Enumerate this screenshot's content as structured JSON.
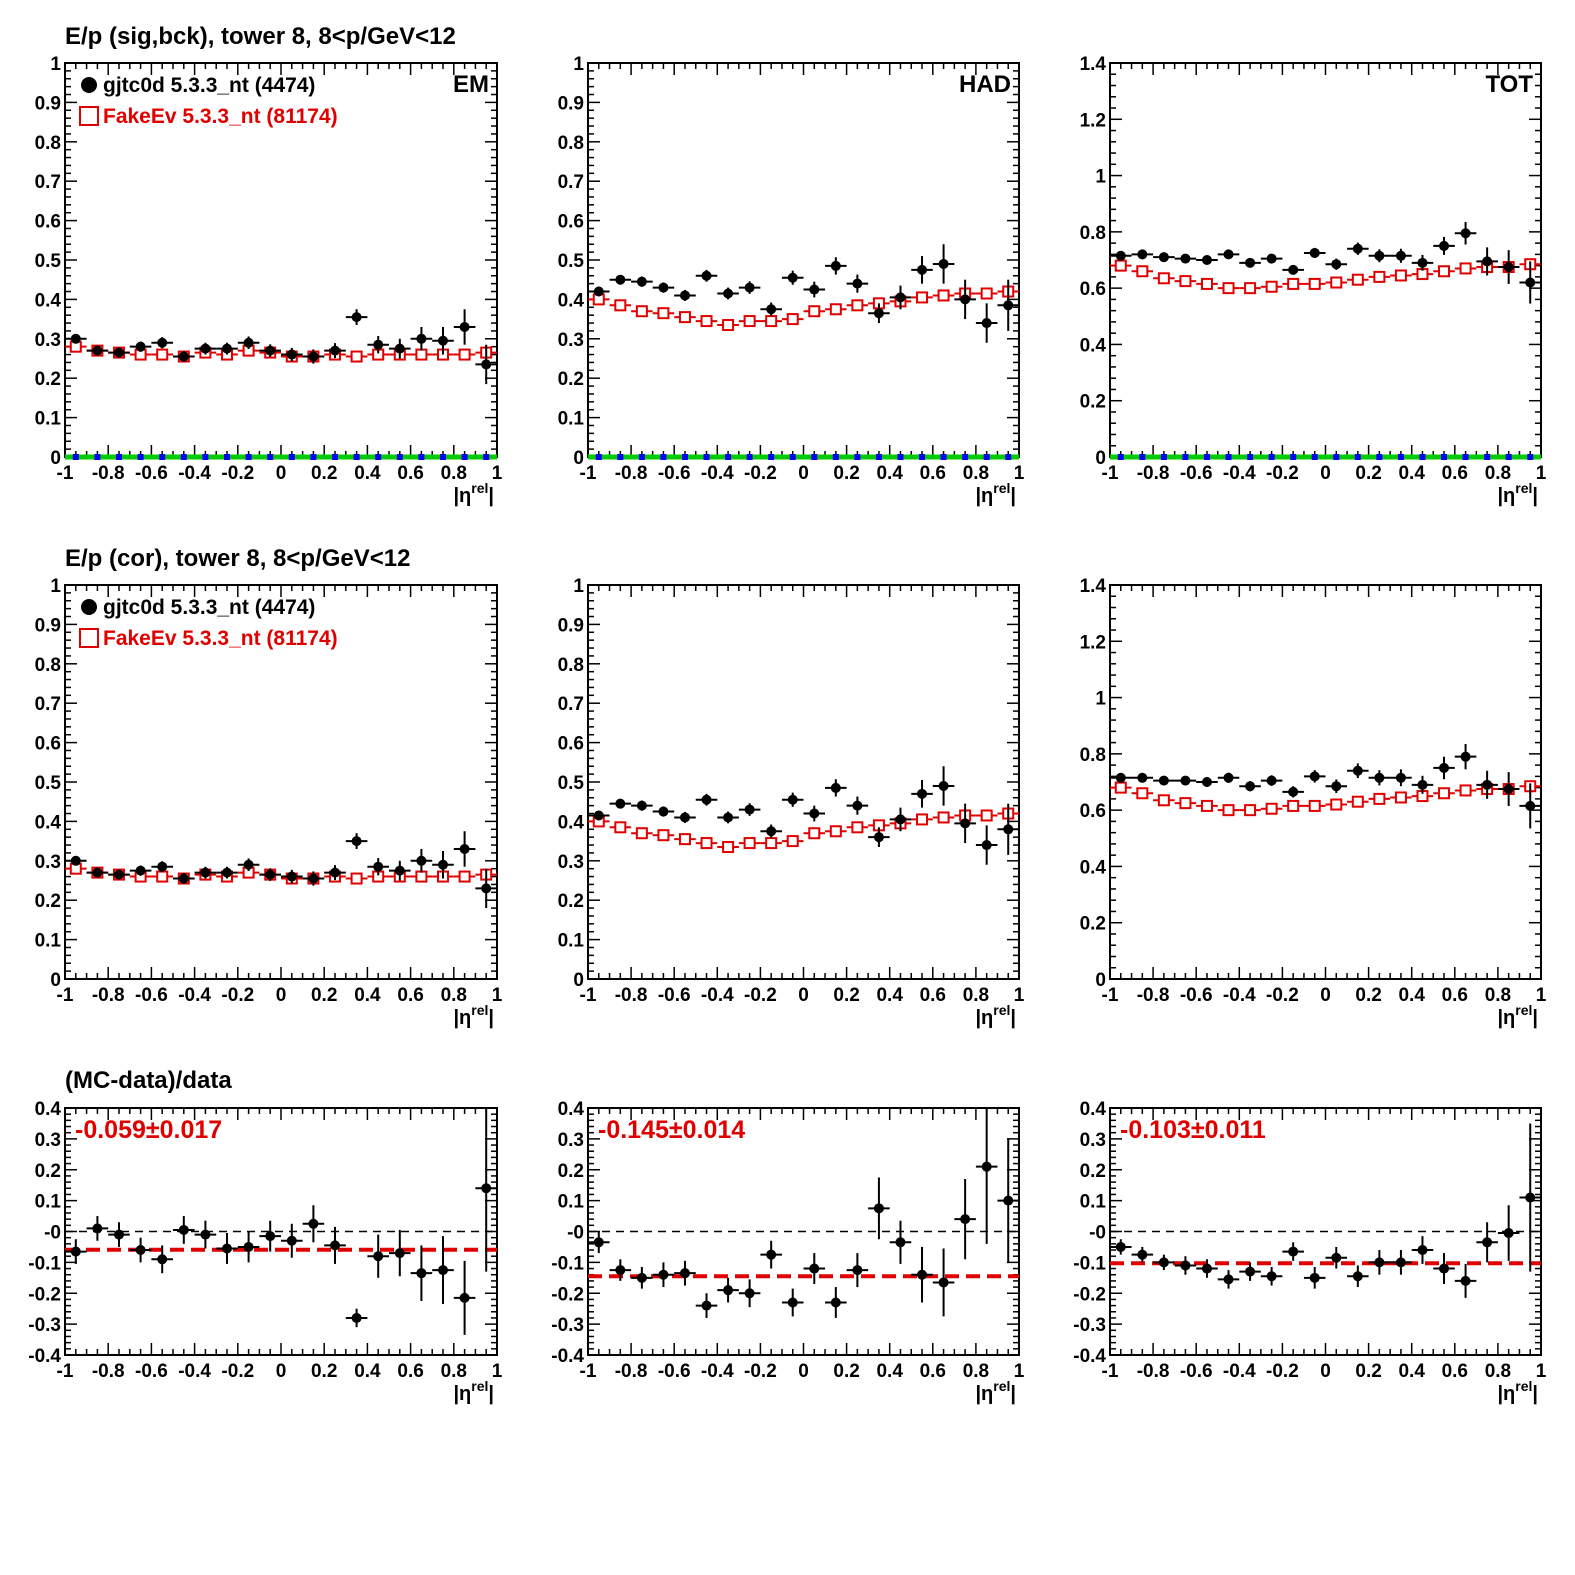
{
  "colors": {
    "data": "#000000",
    "mc": "#e00000",
    "fit": "#e00000",
    "zero_green": "#00cc00",
    "zero_blue": "#0000ff"
  },
  "x_axis": {
    "range": [
      -1,
      1
    ],
    "tick_labels": [
      "-1",
      "-0.8",
      "-0.6",
      "-0.4",
      "-0.2",
      "0",
      "0.2",
      "0.4",
      "0.6",
      "0.8",
      "1"
    ],
    "label": "|η^rel|"
  },
  "rows": {
    "row1": {
      "title": "E/p (sig,bck), tower 8,  8<p/GeV<12"
    },
    "row2": {
      "title": "E/p (cor), tower 8,  8<p/GeV<12"
    },
    "row3": {
      "title": "(MC-data)/data"
    }
  },
  "legend": {
    "data_label": "gjtc0d 5.3.3_nt (4474)",
    "mc_label": "FakeEv 5.3.3_nt (81174)"
  },
  "panel_labels": {
    "em": "EM",
    "had": "HAD",
    "tot": "TOT"
  },
  "fit_labels": {
    "em": "-0.059±0.017",
    "had": "-0.145±0.014",
    "tot": "-0.103±0.011"
  },
  "y_ticks": {
    "ep": [
      "0",
      "0.1",
      "0.2",
      "0.3",
      "0.4",
      "0.5",
      "0.6",
      "0.7",
      "0.8",
      "0.9",
      "1"
    ],
    "tot": [
      "0",
      "0.2",
      "0.4",
      "0.6",
      "0.8",
      "1",
      "1.2",
      "1.4"
    ],
    "ratio": [
      "-0.4",
      "-0.3",
      "-0.2",
      "-0.1",
      "-0",
      "0.1",
      "0.2",
      "0.3",
      "0.4"
    ]
  },
  "chart_data": [
    {
      "id": "em_sigbck",
      "type": "scatter",
      "panel": "EM",
      "x": [
        -0.95,
        -0.85,
        -0.75,
        -0.65,
        -0.55,
        -0.45,
        -0.35,
        -0.25,
        -0.15,
        -0.05,
        0.05,
        0.15,
        0.25,
        0.35,
        0.45,
        0.55,
        0.65,
        0.75,
        0.85,
        0.95
      ],
      "xlim": [
        -1,
        1
      ],
      "ylim": [
        0,
        1
      ],
      "series": [
        {
          "name": "gjtc0d 5.3.3_nt (4474)",
          "values": [
            0.3,
            0.27,
            0.265,
            0.28,
            0.29,
            0.255,
            0.275,
            0.275,
            0.29,
            0.27,
            0.26,
            0.255,
            0.27,
            0.355,
            0.285,
            0.275,
            0.3,
            0.295,
            0.33,
            0.235
          ],
          "errors": [
            0.012,
            0.012,
            0.012,
            0.013,
            0.014,
            0.014,
            0.015,
            0.015,
            0.016,
            0.016,
            0.017,
            0.018,
            0.019,
            0.02,
            0.022,
            0.025,
            0.03,
            0.035,
            0.045,
            0.05
          ]
        },
        {
          "name": "FakeEv 5.3.3_nt (81174)",
          "values": [
            0.28,
            0.27,
            0.265,
            0.26,
            0.26,
            0.255,
            0.265,
            0.26,
            0.27,
            0.265,
            0.255,
            0.255,
            0.26,
            0.255,
            0.26,
            0.26,
            0.26,
            0.26,
            0.26,
            0.265
          ]
        }
      ],
      "zero_markers": true
    },
    {
      "id": "had_sigbck",
      "type": "scatter",
      "panel": "HAD",
      "x": [
        -0.95,
        -0.85,
        -0.75,
        -0.65,
        -0.55,
        -0.45,
        -0.35,
        -0.25,
        -0.15,
        -0.05,
        0.05,
        0.15,
        0.25,
        0.35,
        0.45,
        0.55,
        0.65,
        0.75,
        0.85,
        0.95
      ],
      "xlim": [
        -1,
        1
      ],
      "ylim": [
        0,
        1
      ],
      "series": [
        {
          "name": "gjtc0d 5.3.3_nt (4474)",
          "values": [
            0.42,
            0.45,
            0.445,
            0.43,
            0.41,
            0.46,
            0.415,
            0.43,
            0.375,
            0.455,
            0.425,
            0.485,
            0.44,
            0.365,
            0.405,
            0.475,
            0.49,
            0.4,
            0.34,
            0.385
          ],
          "errors": [
            0.012,
            0.012,
            0.013,
            0.013,
            0.014,
            0.015,
            0.015,
            0.016,
            0.017,
            0.018,
            0.02,
            0.022,
            0.023,
            0.025,
            0.03,
            0.035,
            0.05,
            0.05,
            0.05,
            0.065
          ]
        },
        {
          "name": "FakeEv 5.3.3_nt (81174)",
          "values": [
            0.4,
            0.385,
            0.37,
            0.365,
            0.355,
            0.345,
            0.335,
            0.345,
            0.345,
            0.35,
            0.37,
            0.375,
            0.385,
            0.39,
            0.395,
            0.405,
            0.41,
            0.415,
            0.415,
            0.42
          ]
        }
      ],
      "zero_markers": true
    },
    {
      "id": "tot_sigbck",
      "type": "scatter",
      "panel": "TOT",
      "x": [
        -0.95,
        -0.85,
        -0.75,
        -0.65,
        -0.55,
        -0.45,
        -0.35,
        -0.25,
        -0.15,
        -0.05,
        0.05,
        0.15,
        0.25,
        0.35,
        0.45,
        0.55,
        0.65,
        0.75,
        0.85,
        0.95
      ],
      "xlim": [
        -1,
        1
      ],
      "ylim": [
        0,
        1.4
      ],
      "series": [
        {
          "name": "gjtc0d 5.3.3_nt (4474)",
          "values": [
            0.715,
            0.72,
            0.71,
            0.705,
            0.7,
            0.72,
            0.69,
            0.705,
            0.665,
            0.725,
            0.685,
            0.74,
            0.715,
            0.715,
            0.69,
            0.75,
            0.795,
            0.695,
            0.675,
            0.62
          ],
          "errors": [
            0.012,
            0.012,
            0.013,
            0.013,
            0.014,
            0.015,
            0.015,
            0.016,
            0.017,
            0.018,
            0.02,
            0.022,
            0.023,
            0.025,
            0.028,
            0.032,
            0.04,
            0.05,
            0.06,
            0.075
          ]
        },
        {
          "name": "FakeEv 5.3.3_nt (81174)",
          "values": [
            0.68,
            0.66,
            0.635,
            0.625,
            0.615,
            0.6,
            0.6,
            0.605,
            0.615,
            0.615,
            0.62,
            0.63,
            0.64,
            0.645,
            0.65,
            0.66,
            0.67,
            0.675,
            0.675,
            0.685
          ]
        }
      ],
      "zero_markers": true
    },
    {
      "id": "em_cor",
      "type": "scatter",
      "panel": "EM",
      "x": [
        -0.95,
        -0.85,
        -0.75,
        -0.65,
        -0.55,
        -0.45,
        -0.35,
        -0.25,
        -0.15,
        -0.05,
        0.05,
        0.15,
        0.25,
        0.35,
        0.45,
        0.55,
        0.65,
        0.75,
        0.85,
        0.95
      ],
      "xlim": [
        -1,
        1
      ],
      "ylim": [
        0,
        1
      ],
      "series": [
        {
          "name": "gjtc0d 5.3.3_nt (4474)",
          "values": [
            0.3,
            0.27,
            0.265,
            0.275,
            0.285,
            0.255,
            0.27,
            0.27,
            0.29,
            0.265,
            0.26,
            0.255,
            0.27,
            0.35,
            0.285,
            0.275,
            0.3,
            0.29,
            0.33,
            0.23
          ],
          "errors": [
            0.012,
            0.012,
            0.012,
            0.013,
            0.014,
            0.014,
            0.015,
            0.015,
            0.016,
            0.016,
            0.017,
            0.018,
            0.019,
            0.02,
            0.022,
            0.025,
            0.03,
            0.035,
            0.045,
            0.05
          ]
        },
        {
          "name": "FakeEv 5.3.3_nt (81174)",
          "values": [
            0.28,
            0.27,
            0.265,
            0.26,
            0.26,
            0.255,
            0.265,
            0.26,
            0.27,
            0.265,
            0.255,
            0.255,
            0.26,
            0.255,
            0.26,
            0.26,
            0.26,
            0.26,
            0.26,
            0.265
          ]
        }
      ],
      "zero_markers": false
    },
    {
      "id": "had_cor",
      "type": "scatter",
      "panel": "HAD",
      "x": [
        -0.95,
        -0.85,
        -0.75,
        -0.65,
        -0.55,
        -0.45,
        -0.35,
        -0.25,
        -0.15,
        -0.05,
        0.05,
        0.15,
        0.25,
        0.35,
        0.45,
        0.55,
        0.65,
        0.75,
        0.85,
        0.95
      ],
      "xlim": [
        -1,
        1
      ],
      "ylim": [
        0,
        1
      ],
      "series": [
        {
          "name": "gjtc0d 5.3.3_nt (4474)",
          "values": [
            0.415,
            0.445,
            0.44,
            0.425,
            0.41,
            0.455,
            0.41,
            0.43,
            0.375,
            0.455,
            0.42,
            0.485,
            0.44,
            0.36,
            0.405,
            0.47,
            0.49,
            0.395,
            0.34,
            0.38
          ],
          "errors": [
            0.012,
            0.012,
            0.013,
            0.013,
            0.014,
            0.015,
            0.015,
            0.016,
            0.017,
            0.018,
            0.02,
            0.022,
            0.023,
            0.025,
            0.03,
            0.035,
            0.05,
            0.05,
            0.05,
            0.065
          ]
        },
        {
          "name": "FakeEv 5.3.3_nt (81174)",
          "values": [
            0.4,
            0.385,
            0.37,
            0.365,
            0.355,
            0.345,
            0.335,
            0.345,
            0.345,
            0.35,
            0.37,
            0.375,
            0.385,
            0.39,
            0.395,
            0.405,
            0.41,
            0.415,
            0.415,
            0.42
          ]
        }
      ],
      "zero_markers": false
    },
    {
      "id": "tot_cor",
      "type": "scatter",
      "panel": "TOT",
      "x": [
        -0.95,
        -0.85,
        -0.75,
        -0.65,
        -0.55,
        -0.45,
        -0.35,
        -0.25,
        -0.15,
        -0.05,
        0.05,
        0.15,
        0.25,
        0.35,
        0.45,
        0.55,
        0.65,
        0.75,
        0.85,
        0.95
      ],
      "xlim": [
        -1,
        1
      ],
      "ylim": [
        0,
        1.4
      ],
      "series": [
        {
          "name": "gjtc0d 5.3.3_nt (4474)",
          "values": [
            0.715,
            0.715,
            0.705,
            0.705,
            0.7,
            0.715,
            0.685,
            0.705,
            0.665,
            0.72,
            0.685,
            0.74,
            0.715,
            0.715,
            0.69,
            0.75,
            0.79,
            0.69,
            0.675,
            0.615
          ],
          "errors": [
            0.015,
            0.015,
            0.016,
            0.016,
            0.017,
            0.018,
            0.018,
            0.019,
            0.02,
            0.022,
            0.024,
            0.026,
            0.027,
            0.03,
            0.032,
            0.04,
            0.045,
            0.05,
            0.06,
            0.08
          ]
        },
        {
          "name": "FakeEv 5.3.3_nt (81174)",
          "values": [
            0.68,
            0.66,
            0.635,
            0.625,
            0.615,
            0.6,
            0.6,
            0.605,
            0.615,
            0.615,
            0.62,
            0.63,
            0.64,
            0.645,
            0.65,
            0.66,
            0.67,
            0.675,
            0.675,
            0.685
          ]
        }
      ],
      "zero_markers": false
    },
    {
      "id": "em_ratio",
      "type": "scatter",
      "panel": "EM",
      "x": [
        -0.95,
        -0.85,
        -0.75,
        -0.65,
        -0.55,
        -0.45,
        -0.35,
        -0.25,
        -0.15,
        -0.05,
        0.05,
        0.15,
        0.25,
        0.35,
        0.45,
        0.55,
        0.65,
        0.75,
        0.85,
        0.95
      ],
      "xlim": [
        -1,
        1
      ],
      "ylim": [
        -0.4,
        0.4
      ],
      "series": [
        {
          "name": "(MC-data)/data",
          "values": [
            -0.065,
            0.01,
            -0.01,
            -0.06,
            -0.09,
            0.005,
            -0.01,
            -0.055,
            -0.05,
            -0.015,
            -0.03,
            0.025,
            -0.045,
            -0.28,
            -0.08,
            -0.07,
            -0.135,
            -0.125,
            -0.215,
            0.14
          ],
          "errors": [
            0.04,
            0.04,
            0.04,
            0.04,
            0.045,
            0.045,
            0.045,
            0.05,
            0.05,
            0.05,
            0.055,
            0.06,
            0.06,
            0.03,
            0.07,
            0.075,
            0.09,
            0.11,
            0.12,
            0.27
          ]
        }
      ],
      "reference_lines": {
        "zero": 0,
        "fit": -0.059
      }
    },
    {
      "id": "had_ratio",
      "type": "scatter",
      "panel": "HAD",
      "x": [
        -0.95,
        -0.85,
        -0.75,
        -0.65,
        -0.55,
        -0.45,
        -0.35,
        -0.25,
        -0.15,
        -0.05,
        0.05,
        0.15,
        0.25,
        0.35,
        0.45,
        0.55,
        0.65,
        0.75,
        0.85,
        0.95
      ],
      "xlim": [
        -1,
        1
      ],
      "ylim": [
        -0.4,
        0.4
      ],
      "series": [
        {
          "name": "(MC-data)/data",
          "values": [
            -0.035,
            -0.125,
            -0.15,
            -0.14,
            -0.135,
            -0.24,
            -0.19,
            -0.2,
            -0.075,
            -0.23,
            -0.12,
            -0.23,
            -0.125,
            0.075,
            -0.035,
            -0.14,
            -0.165,
            0.04,
            0.21,
            0.1
          ],
          "errors": [
            0.035,
            0.035,
            0.035,
            0.04,
            0.04,
            0.04,
            0.04,
            0.045,
            0.045,
            0.045,
            0.05,
            0.05,
            0.055,
            0.1,
            0.07,
            0.09,
            0.11,
            0.13,
            0.25,
            0.2
          ]
        }
      ],
      "reference_lines": {
        "zero": 0,
        "fit": -0.145
      }
    },
    {
      "id": "tot_ratio",
      "type": "scatter",
      "panel": "TOT",
      "x": [
        -0.95,
        -0.85,
        -0.75,
        -0.65,
        -0.55,
        -0.45,
        -0.35,
        -0.25,
        -0.15,
        -0.05,
        0.05,
        0.15,
        0.25,
        0.35,
        0.45,
        0.55,
        0.65,
        0.75,
        0.85,
        0.95
      ],
      "xlim": [
        -1,
        1
      ],
      "ylim": [
        -0.4,
        0.4
      ],
      "series": [
        {
          "name": "(MC-data)/data",
          "values": [
            -0.05,
            -0.075,
            -0.1,
            -0.11,
            -0.12,
            -0.155,
            -0.13,
            -0.145,
            -0.065,
            -0.15,
            -0.085,
            -0.145,
            -0.1,
            -0.1,
            -0.06,
            -0.12,
            -0.16,
            -0.035,
            -0.005,
            0.11
          ],
          "errors": [
            0.025,
            0.025,
            0.025,
            0.03,
            0.03,
            0.03,
            0.03,
            0.03,
            0.03,
            0.035,
            0.035,
            0.035,
            0.04,
            0.04,
            0.045,
            0.05,
            0.055,
            0.065,
            0.09,
            0.24
          ]
        }
      ],
      "reference_lines": {
        "zero": 0,
        "fit": -0.103
      }
    }
  ]
}
